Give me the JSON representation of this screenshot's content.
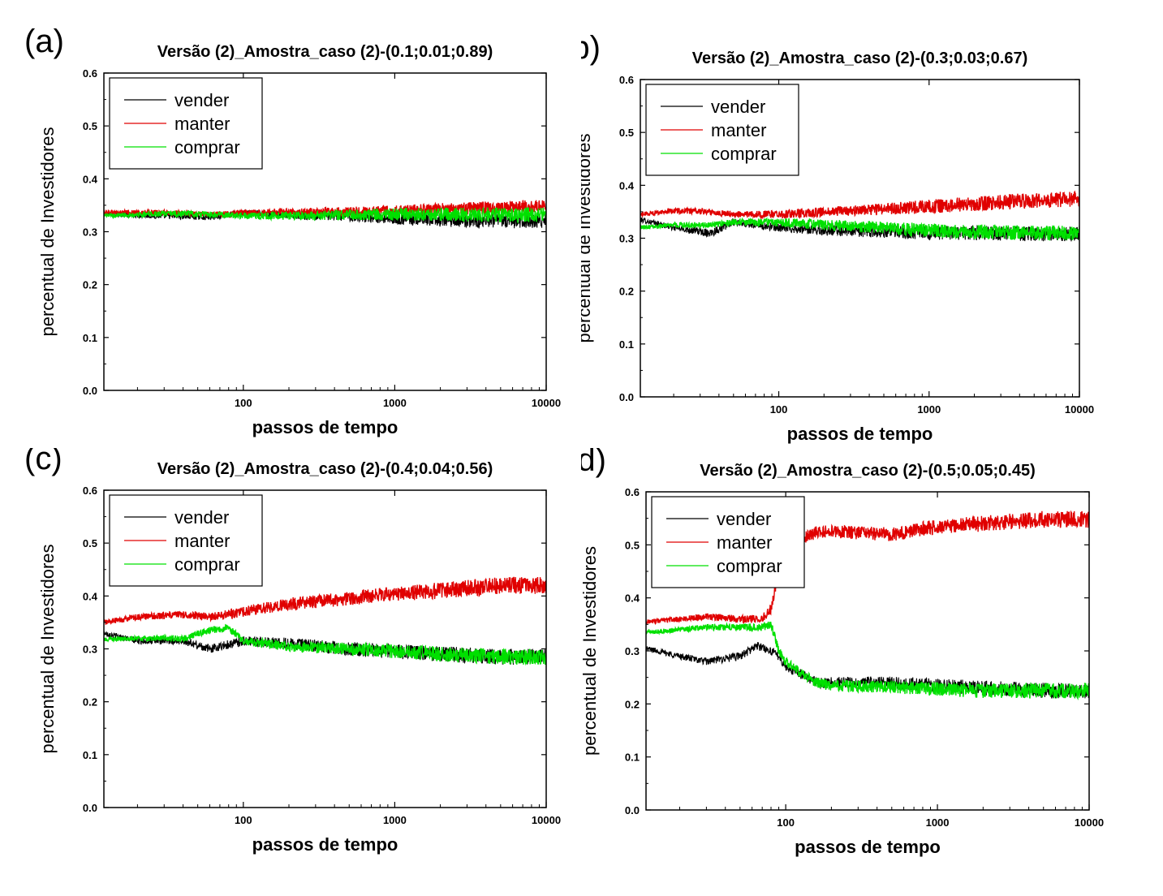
{
  "chart_data": [
    {
      "panel_label": "(a)",
      "type": "line",
      "title": "Versão (2)_Amostra_caso (2)-(0.1;0.01;0.89)",
      "xlabel": "passos de tempo",
      "ylabel": "percentual de Investidores",
      "x_scale": "log",
      "xlim": [
        12,
        10000
      ],
      "ylim": [
        0,
        0.6
      ],
      "x_ticks": [
        100,
        1000,
        10000
      ],
      "x_tick_labels": [
        "100",
        "1000",
        "10000"
      ],
      "y_ticks": [
        0,
        0.1,
        0.2,
        0.3,
        0.4,
        0.5,
        0.6
      ],
      "y_tick_labels": [
        "0.0",
        "0.1",
        "0.2",
        "0.3",
        "0.4",
        "0.5",
        "0.6"
      ],
      "legend_position": "top-left",
      "series": [
        {
          "name": "vender",
          "color": "#000000",
          "x": [
            12,
            30,
            60,
            100,
            200,
            500,
            1000,
            2000,
            5000,
            10000
          ],
          "y": [
            0.333,
            0.33,
            0.328,
            0.335,
            0.332,
            0.33,
            0.325,
            0.322,
            0.32,
            0.32
          ],
          "noise": [
            0.004,
            0.006,
            0.006,
            0.006,
            0.008,
            0.01,
            0.012,
            0.013,
            0.014,
            0.014
          ]
        },
        {
          "name": "manter",
          "color": "#e00000",
          "x": [
            12,
            30,
            60,
            100,
            200,
            500,
            1000,
            2000,
            5000,
            10000
          ],
          "y": [
            0.337,
            0.336,
            0.333,
            0.335,
            0.337,
            0.338,
            0.34,
            0.343,
            0.346,
            0.348
          ],
          "noise": [
            0.004,
            0.005,
            0.005,
            0.006,
            0.007,
            0.009,
            0.01,
            0.011,
            0.012,
            0.012
          ]
        },
        {
          "name": "comprar",
          "color": "#00e000",
          "x": [
            12,
            30,
            60,
            100,
            200,
            500,
            1000,
            2000,
            5000,
            10000
          ],
          "y": [
            0.33,
            0.334,
            0.333,
            0.33,
            0.33,
            0.332,
            0.333,
            0.333,
            0.332,
            0.332
          ],
          "noise": [
            0.004,
            0.006,
            0.006,
            0.006,
            0.008,
            0.01,
            0.012,
            0.013,
            0.014,
            0.014
          ]
        }
      ]
    },
    {
      "panel_label": "(b)",
      "type": "line",
      "title": "Versão (2)_Amostra_caso (2)-(0.3;0.03;0.67)",
      "xlabel": "passos de tempo",
      "ylabel": "percentual de Investidores",
      "x_scale": "log",
      "xlim": [
        12,
        10000
      ],
      "ylim": [
        0,
        0.6
      ],
      "x_ticks": [
        100,
        1000,
        10000
      ],
      "x_tick_labels": [
        "100",
        "1000",
        "10000"
      ],
      "y_ticks": [
        0,
        0.1,
        0.2,
        0.3,
        0.4,
        0.5,
        0.6
      ],
      "y_tick_labels": [
        "0.0",
        "0.1",
        "0.2",
        "0.3",
        "0.4",
        "0.5",
        "0.6"
      ],
      "legend_position": "top-left",
      "series": [
        {
          "name": "vender",
          "color": "#000000",
          "x": [
            12,
            20,
            35,
            50,
            100,
            200,
            500,
            1000,
            2000,
            5000,
            10000
          ],
          "y": [
            0.335,
            0.32,
            0.31,
            0.33,
            0.32,
            0.315,
            0.312,
            0.31,
            0.31,
            0.308,
            0.308
          ],
          "noise": [
            0.005,
            0.006,
            0.008,
            0.007,
            0.008,
            0.01,
            0.012,
            0.013,
            0.014,
            0.014,
            0.014
          ]
        },
        {
          "name": "manter",
          "color": "#e00000",
          "x": [
            12,
            20,
            35,
            50,
            100,
            200,
            500,
            1000,
            2000,
            5000,
            10000
          ],
          "y": [
            0.345,
            0.352,
            0.35,
            0.345,
            0.345,
            0.35,
            0.355,
            0.36,
            0.365,
            0.372,
            0.374
          ],
          "noise": [
            0.004,
            0.005,
            0.006,
            0.006,
            0.008,
            0.009,
            0.011,
            0.013,
            0.014,
            0.015,
            0.015
          ]
        },
        {
          "name": "comprar",
          "color": "#00e000",
          "x": [
            12,
            20,
            35,
            50,
            100,
            200,
            500,
            1000,
            2000,
            5000,
            10000
          ],
          "y": [
            0.32,
            0.325,
            0.325,
            0.33,
            0.33,
            0.325,
            0.32,
            0.315,
            0.312,
            0.31,
            0.31
          ],
          "noise": [
            0.004,
            0.005,
            0.006,
            0.006,
            0.008,
            0.01,
            0.012,
            0.013,
            0.014,
            0.014,
            0.014
          ]
        }
      ]
    },
    {
      "panel_label": "(c)",
      "type": "line",
      "title": "Versão (2)_Amostra_caso (2)-(0.4;0.04;0.56)",
      "xlabel": "passos de tempo",
      "ylabel": "percentual de Investidores",
      "x_scale": "log",
      "xlim": [
        12,
        10000
      ],
      "ylim": [
        0,
        0.6
      ],
      "x_ticks": [
        100,
        1000,
        10000
      ],
      "x_tick_labels": [
        "100",
        "1000",
        "10000"
      ],
      "y_ticks": [
        0,
        0.1,
        0.2,
        0.3,
        0.4,
        0.5,
        0.6
      ],
      "y_tick_labels": [
        "0.0",
        "0.1",
        "0.2",
        "0.3",
        "0.4",
        "0.5",
        "0.6"
      ],
      "legend_position": "top-left",
      "series": [
        {
          "name": "vender",
          "color": "#000000",
          "x": [
            12,
            20,
            40,
            60,
            100,
            200,
            500,
            1000,
            2000,
            5000,
            10000
          ],
          "y": [
            0.33,
            0.315,
            0.315,
            0.3,
            0.315,
            0.31,
            0.3,
            0.295,
            0.29,
            0.285,
            0.285
          ],
          "noise": [
            0.005,
            0.006,
            0.007,
            0.008,
            0.009,
            0.011,
            0.013,
            0.014,
            0.015,
            0.015,
            0.015
          ]
        },
        {
          "name": "manter",
          "color": "#e00000",
          "x": [
            12,
            20,
            40,
            60,
            100,
            200,
            500,
            1000,
            2000,
            5000,
            10000
          ],
          "y": [
            0.35,
            0.36,
            0.365,
            0.36,
            0.37,
            0.385,
            0.395,
            0.405,
            0.41,
            0.42,
            0.42
          ],
          "noise": [
            0.005,
            0.006,
            0.007,
            0.008,
            0.01,
            0.012,
            0.013,
            0.014,
            0.016,
            0.016,
            0.016
          ]
        },
        {
          "name": "comprar",
          "color": "#00e000",
          "x": [
            12,
            20,
            40,
            60,
            80,
            100,
            200,
            500,
            1000,
            2000,
            5000,
            10000
          ],
          "y": [
            0.318,
            0.32,
            0.32,
            0.335,
            0.34,
            0.315,
            0.305,
            0.3,
            0.295,
            0.29,
            0.285,
            0.285
          ],
          "noise": [
            0.004,
            0.005,
            0.006,
            0.007,
            0.007,
            0.008,
            0.01,
            0.012,
            0.013,
            0.014,
            0.015,
            0.015
          ]
        }
      ]
    },
    {
      "panel_label": "(d)",
      "type": "line",
      "title": "Versão (2)_Amostra_caso (2)-(0.5;0.05;0.45)",
      "xlabel": "passos de tempo",
      "ylabel": "percentual de Investidores",
      "x_scale": "log",
      "xlim": [
        12,
        10000
      ],
      "ylim": [
        0,
        0.6
      ],
      "x_ticks": [
        100,
        1000,
        10000
      ],
      "x_tick_labels": [
        "100",
        "1000",
        "10000"
      ],
      "y_ticks": [
        0,
        0.1,
        0.2,
        0.3,
        0.4,
        0.5,
        0.6
      ],
      "y_tick_labels": [
        "0.0",
        "0.1",
        "0.2",
        "0.3",
        "0.4",
        "0.5",
        "0.6"
      ],
      "legend_position": "top-left",
      "series": [
        {
          "name": "vender",
          "color": "#000000",
          "x": [
            12,
            20,
            30,
            50,
            65,
            80,
            90,
            100,
            130,
            160,
            200,
            500,
            1000,
            2000,
            5000,
            10000
          ],
          "y": [
            0.305,
            0.29,
            0.28,
            0.29,
            0.31,
            0.3,
            0.29,
            0.27,
            0.255,
            0.24,
            0.24,
            0.24,
            0.235,
            0.23,
            0.225,
            0.225
          ],
          "noise": [
            0.005,
            0.006,
            0.007,
            0.008,
            0.008,
            0.008,
            0.008,
            0.008,
            0.009,
            0.01,
            0.011,
            0.012,
            0.013,
            0.014,
            0.015,
            0.015
          ]
        },
        {
          "name": "manter",
          "color": "#e00000",
          "x": [
            12,
            20,
            30,
            50,
            70,
            80,
            90,
            100,
            130,
            160,
            200,
            500,
            1000,
            2000,
            5000,
            10000
          ],
          "y": [
            0.355,
            0.36,
            0.365,
            0.36,
            0.36,
            0.38,
            0.45,
            0.48,
            0.51,
            0.525,
            0.525,
            0.52,
            0.535,
            0.54,
            0.548,
            0.548
          ],
          "noise": [
            0.004,
            0.005,
            0.006,
            0.007,
            0.008,
            0.01,
            0.012,
            0.012,
            0.012,
            0.012,
            0.012,
            0.013,
            0.014,
            0.015,
            0.016,
            0.016
          ]
        },
        {
          "name": "comprar",
          "color": "#00e000",
          "x": [
            12,
            20,
            30,
            50,
            70,
            80,
            90,
            100,
            130,
            160,
            200,
            500,
            1000,
            2000,
            5000,
            10000
          ],
          "y": [
            0.335,
            0.34,
            0.345,
            0.345,
            0.345,
            0.35,
            0.3,
            0.28,
            0.255,
            0.24,
            0.235,
            0.232,
            0.228,
            0.225,
            0.225,
            0.225
          ],
          "noise": [
            0.004,
            0.005,
            0.006,
            0.007,
            0.008,
            0.008,
            0.008,
            0.008,
            0.009,
            0.01,
            0.011,
            0.012,
            0.013,
            0.014,
            0.015,
            0.015
          ]
        }
      ]
    }
  ]
}
